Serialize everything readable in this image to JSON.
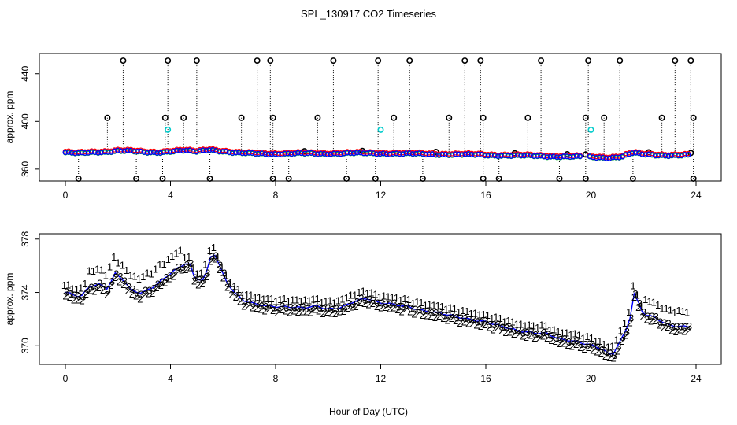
{
  "chart_data": [
    {
      "type": "scatter",
      "title": "SPL_130917  CO2 Timeseries",
      "xlabel": "",
      "ylabel": "approx. ppm",
      "xlim": [
        -1,
        25
      ],
      "ylim": [
        350,
        457
      ],
      "x_ticks": [
        "0",
        "4",
        "8",
        "12",
        "16",
        "20",
        "24"
      ],
      "y_ticks": [
        "360",
        "400",
        "440"
      ],
      "colors": {
        "series1": "#ff0000",
        "series2": "#00cc00",
        "series3": "#0000ff",
        "cyan": "#00cccc",
        "ring": "#000000"
      },
      "baseline": [
        [
          0.0,
          374
        ],
        [
          0.5,
          373
        ],
        [
          1.0,
          374
        ],
        [
          1.5,
          374.5
        ],
        [
          2.0,
          375.5
        ],
        [
          2.5,
          375
        ],
        [
          3.0,
          374
        ],
        [
          3.5,
          374
        ],
        [
          4.0,
          375
        ],
        [
          4.5,
          375.5
        ],
        [
          5.0,
          374.5
        ],
        [
          5.5,
          376.5
        ],
        [
          6.0,
          375
        ],
        [
          6.5,
          373.5
        ],
        [
          7.0,
          373
        ],
        [
          7.5,
          373
        ],
        [
          8.0,
          372.8
        ],
        [
          9.0,
          373
        ],
        [
          10.0,
          373
        ],
        [
          11.0,
          373.3
        ],
        [
          12.0,
          373.2
        ],
        [
          13.0,
          372.8
        ],
        [
          14.0,
          372.5
        ],
        [
          15.0,
          372.1
        ],
        [
          16.0,
          371.8
        ],
        [
          17.0,
          371.3
        ],
        [
          18.0,
          371
        ],
        [
          19.0,
          370.5
        ],
        [
          20.0,
          370.1
        ],
        [
          20.7,
          369.6
        ],
        [
          21.2,
          370.5
        ],
        [
          21.6,
          373.5
        ],
        [
          22.0,
          372.2
        ],
        [
          23.0,
          371.6
        ],
        [
          23.7,
          371.5
        ]
      ],
      "high_outliers": [
        2.2,
        3.9,
        5.0,
        7.3,
        7.8,
        10.2,
        11.9,
        13.1,
        15.2,
        15.8,
        18.1,
        19.9,
        21.1,
        23.2,
        23.8
      ],
      "mid_outliers": [
        1.6,
        3.8,
        4.5,
        6.7,
        7.9,
        9.6,
        12.5,
        14.6,
        15.9,
        17.6,
        19.8,
        20.5,
        22.7,
        23.9
      ],
      "low_outliers": [
        0.5,
        2.7,
        3.7,
        5.5,
        7.9,
        8.5,
        10.7,
        11.8,
        13.6,
        15.9,
        16.5,
        18.8,
        19.8,
        21.6,
        23.9
      ],
      "near_outliers": [
        9.1,
        11.3,
        14.1,
        17.1,
        19.1,
        19.8,
        22.2,
        23.8
      ],
      "cyan_points": [
        [
          3.9,
          393
        ],
        [
          12.0,
          393
        ],
        [
          20.0,
          393
        ]
      ]
    },
    {
      "type": "scatter",
      "title": "",
      "xlabel": "Hour of Day (UTC)",
      "ylabel": "approx. ppm",
      "xlim": [
        -1,
        25
      ],
      "ylim": [
        368.6,
        378.4
      ],
      "x_ticks": [
        "0",
        "4",
        "8",
        "12",
        "16",
        "20",
        "24"
      ],
      "y_ticks": [
        "370",
        "374",
        "378"
      ],
      "point_symbols": [
        "1",
        "2",
        "3"
      ],
      "series": [
        {
          "name": "1",
          "color": "#ff0000",
          "offset": 0.55
        },
        {
          "name": "2",
          "color": "#00aa00",
          "offset": -0.3
        },
        {
          "name": "3",
          "color": "#0000ff",
          "offset": 0.0
        }
      ],
      "line_color": "#0000ff",
      "trend": [
        [
          0.0,
          374.0
        ],
        [
          0.3,
          373.8
        ],
        [
          0.6,
          373.6
        ],
        [
          0.9,
          374.4
        ],
        [
          1.3,
          374.6
        ],
        [
          1.6,
          374.3
        ],
        [
          1.9,
          375.5
        ],
        [
          2.2,
          375.0
        ],
        [
          2.5,
          374.2
        ],
        [
          2.9,
          373.9
        ],
        [
          3.3,
          374.3
        ],
        [
          3.7,
          374.9
        ],
        [
          4.1,
          375.6
        ],
        [
          4.4,
          376.0
        ],
        [
          4.7,
          376.4
        ],
        [
          4.9,
          375.2
        ],
        [
          5.2,
          374.9
        ],
        [
          5.4,
          375.6
        ],
        [
          5.6,
          377.2
        ],
        [
          5.8,
          376.3
        ],
        [
          6.1,
          374.8
        ],
        [
          6.5,
          373.8
        ],
        [
          6.8,
          373.4
        ],
        [
          7.2,
          373.2
        ],
        [
          7.8,
          373.0
        ],
        [
          8.2,
          372.9
        ],
        [
          9.0,
          372.8
        ],
        [
          9.6,
          373.0
        ],
        [
          10.0,
          372.8
        ],
        [
          10.5,
          372.9
        ],
        [
          11.0,
          373.3
        ],
        [
          11.5,
          373.5
        ],
        [
          11.9,
          373.2
        ],
        [
          12.3,
          373.2
        ],
        [
          13.0,
          373.0
        ],
        [
          13.6,
          372.6
        ],
        [
          14.2,
          372.4
        ],
        [
          14.9,
          372.2
        ],
        [
          15.5,
          372.0
        ],
        [
          16.0,
          371.8
        ],
        [
          16.6,
          371.4
        ],
        [
          17.2,
          371.1
        ],
        [
          17.8,
          371.0
        ],
        [
          18.3,
          371.0
        ],
        [
          18.8,
          370.5
        ],
        [
          19.3,
          370.3
        ],
        [
          19.8,
          370.1
        ],
        [
          20.1,
          370.0
        ],
        [
          20.4,
          369.8
        ],
        [
          20.8,
          369.3
        ],
        [
          21.0,
          370.0
        ],
        [
          21.3,
          371.0
        ],
        [
          21.5,
          372.2
        ],
        [
          21.65,
          373.9
        ],
        [
          21.8,
          373.2
        ],
        [
          22.0,
          372.3
        ],
        [
          22.4,
          372.1
        ],
        [
          22.9,
          371.6
        ],
        [
          23.3,
          371.5
        ],
        [
          23.7,
          371.5
        ]
      ]
    }
  ]
}
